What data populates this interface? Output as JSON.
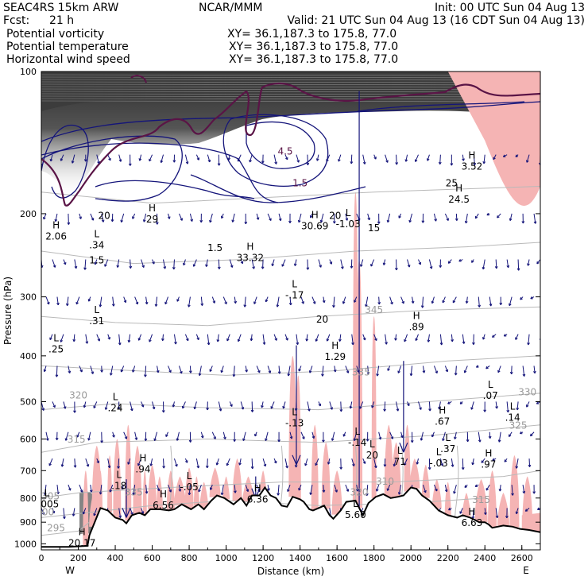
{
  "header": {
    "model": "SEAC4RS 15km ARW",
    "center": "NCAR/MMM",
    "init": "Init: 00 UTC Sun 04 Aug 13",
    "fcst_label": "Fcst:",
    "fcst_value": "21 h",
    "valid": "Valid: 21 UTC Sun 04 Aug 13 (16 CDT Sun 04 Aug 13)"
  },
  "fields": [
    {
      "name": "Potential vorticity",
      "xy": "XY=  36.1,187.3 to 175.8, 77.0",
      "color": "#000000"
    },
    {
      "name": "Potential temperature",
      "xy": "XY=  36.1,187.3 to 175.8, 77.0",
      "color": "#b4b4b4"
    },
    {
      "name": "Horizontal wind speed",
      "xy": "XY=  36.1,187.3 to 175.8, 77.0",
      "color": "#000080"
    }
  ],
  "colors": {
    "pv_fill_dark": "#3c3c3c",
    "pink": "#f5b4b4",
    "navy": "#14147a",
    "maroon": "#5a1446",
    "gray_contour": "#b9b9b9",
    "terrain": "#000000"
  },
  "chart_data": {
    "type": "cross-section",
    "xlabel": "Distance (km)",
    "ylabel": "Pressure (hPa)",
    "x_ticks": [
      0,
      200,
      400,
      600,
      800,
      1000,
      1200,
      1400,
      1600,
      1800,
      2000,
      2200,
      2400,
      2600
    ],
    "y_ticks": [
      100,
      200,
      300,
      400,
      500,
      600,
      700,
      800,
      900,
      1000
    ],
    "xlim": [
      0,
      2700
    ],
    "ylim": [
      1030,
      100
    ],
    "y_scale": "log",
    "left_end": "W",
    "right_end": "E",
    "terrain_surface": [
      [
        0,
        1015
      ],
      [
        150,
        1015
      ],
      [
        250,
        1010
      ],
      [
        260,
        960
      ],
      [
        320,
        840
      ],
      [
        360,
        850
      ],
      [
        400,
        880
      ],
      [
        440,
        890
      ],
      [
        460,
        905
      ],
      [
        490,
        870
      ],
      [
        530,
        860
      ],
      [
        560,
        870
      ],
      [
        590,
        845
      ],
      [
        640,
        845
      ],
      [
        690,
        850
      ],
      [
        720,
        845
      ],
      [
        760,
        825
      ],
      [
        810,
        845
      ],
      [
        850,
        825
      ],
      [
        880,
        845
      ],
      [
        920,
        810
      ],
      [
        950,
        790
      ],
      [
        990,
        800
      ],
      [
        1040,
        825
      ],
      [
        1080,
        800
      ],
      [
        1110,
        830
      ],
      [
        1140,
        790
      ],
      [
        1180,
        790
      ],
      [
        1210,
        760
      ],
      [
        1240,
        790
      ],
      [
        1270,
        800
      ],
      [
        1300,
        830
      ],
      [
        1330,
        835
      ],
      [
        1360,
        795
      ],
      [
        1400,
        805
      ],
      [
        1420,
        815
      ],
      [
        1450,
        845
      ],
      [
        1470,
        850
      ],
      [
        1500,
        840
      ],
      [
        1530,
        830
      ],
      [
        1560,
        870
      ],
      [
        1580,
        885
      ],
      [
        1620,
        850
      ],
      [
        1650,
        815
      ],
      [
        1700,
        810
      ],
      [
        1740,
        870
      ],
      [
        1770,
        820
      ],
      [
        1810,
        795
      ],
      [
        1850,
        785
      ],
      [
        1890,
        800
      ],
      [
        1930,
        795
      ],
      [
        1960,
        790
      ],
      [
        2000,
        760
      ],
      [
        2030,
        765
      ],
      [
        2060,
        790
      ],
      [
        2100,
        810
      ],
      [
        2150,
        850
      ],
      [
        2200,
        870
      ],
      [
        2250,
        880
      ],
      [
        2280,
        870
      ],
      [
        2320,
        880
      ],
      [
        2370,
        900
      ],
      [
        2400,
        900
      ],
      [
        2420,
        910
      ],
      [
        2440,
        925
      ],
      [
        2470,
        920
      ],
      [
        2500,
        915
      ],
      [
        2550,
        920
      ],
      [
        2590,
        930
      ],
      [
        2640,
        935
      ],
      [
        2700,
        945
      ]
    ],
    "theta_contour_labels": [
      {
        "text": "345",
        "x": 1800,
        "p": 325
      },
      {
        "text": "335",
        "x": 1730,
        "p": 440
      },
      {
        "text": "330",
        "x": 2630,
        "p": 485
      },
      {
        "text": "320",
        "x": 200,
        "p": 492
      },
      {
        "text": "325",
        "x": 2580,
        "p": 570
      },
      {
        "text": "315",
        "x": 190,
        "p": 610
      },
      {
        "text": "305",
        "x": 50,
        "p": 805
      },
      {
        "text": "300",
        "x": 20,
        "p": 870
      },
      {
        "text": "310",
        "x": 1860,
        "p": 750
      },
      {
        "text": "320",
        "x": 1720,
        "p": 790
      },
      {
        "text": "315",
        "x": 2380,
        "p": 820
      },
      {
        "text": "335",
        "x": 500,
        "p": 790
      },
      {
        "text": "295",
        "x": 80,
        "p": 940
      }
    ],
    "wind_contour_labels": [
      {
        "text": "20",
        "x": 340,
        "p": 205
      },
      {
        "text": "25",
        "x": 2220,
        "p": 175
      },
      {
        "text": "20",
        "x": 1590,
        "p": 205
      },
      {
        "text": "20",
        "x": 1520,
        "p": 340
      },
      {
        "text": "15",
        "x": 1800,
        "p": 218
      },
      {
        "text": "1.5",
        "x": 300,
        "p": 255
      },
      {
        "text": "1.5",
        "x": 940,
        "p": 240
      }
    ],
    "pv_contour_labels": [
      {
        "text": "1.5",
        "x": 1400,
        "p": 175
      },
      {
        "text": "4.5",
        "x": 1320,
        "p": 150
      }
    ],
    "extrema": [
      {
        "type": "H",
        "value": "3.52",
        "x": 2330,
        "p": 160
      },
      {
        "type": "H",
        "value": "24.5",
        "x": 2260,
        "p": 188
      },
      {
        "type": "H",
        "value": "29",
        "x": 600,
        "p": 207
      },
      {
        "type": "H",
        "value": "30.69",
        "x": 1480,
        "p": 214
      },
      {
        "type": "L",
        "value": "-1.03",
        "x": 1660,
        "p": 212
      },
      {
        "type": "H",
        "value": "33.32",
        "x": 1130,
        "p": 250
      },
      {
        "type": "L",
        "value": "-.17",
        "x": 1370,
        "p": 300
      },
      {
        "type": "H",
        "value": "2.06",
        "x": 80,
        "p": 225
      },
      {
        "type": "L",
        "value": ".34",
        "x": 300,
        "p": 235
      },
      {
        "type": "L",
        "value": ".31",
        "x": 300,
        "p": 340
      },
      {
        "type": "L",
        "value": ".25",
        "x": 80,
        "p": 390
      },
      {
        "type": "H",
        "value": ".89",
        "x": 2030,
        "p": 350
      },
      {
        "type": "H",
        "value": "1.29",
        "x": 1590,
        "p": 405
      },
      {
        "type": "L",
        "value": ".24",
        "x": 400,
        "p": 520
      },
      {
        "type": "L",
        "value": ".07",
        "x": 2430,
        "p": 490
      },
      {
        "type": "L",
        "value": ".14",
        "x": 2550,
        "p": 545
      },
      {
        "type": "L",
        "value": "-.13",
        "x": 1370,
        "p": 560
      },
      {
        "type": "H",
        "value": ".67",
        "x": 2170,
        "p": 555
      },
      {
        "type": "L",
        "value": "-.14",
        "x": 1710,
        "p": 615
      },
      {
        "type": "L",
        "value": ".37",
        "x": 2200,
        "p": 635
      },
      {
        "type": "L",
        "value": "20",
        "x": 1790,
        "p": 655
      },
      {
        "type": "L",
        "value": "-.03",
        "x": 2150,
        "p": 680
      },
      {
        "type": "H",
        "value": ".97",
        "x": 2420,
        "p": 685
      },
      {
        "type": "H",
        "value": ".94",
        "x": 550,
        "p": 700
      },
      {
        "type": "L",
        "value": ".18",
        "x": 420,
        "p": 760
      },
      {
        "type": "L",
        "value": "-.05",
        "x": 800,
        "p": 765
      },
      {
        "type": "H",
        "value": "6.36",
        "x": 1170,
        "p": 812
      },
      {
        "type": "H",
        "value": "6.56",
        "x": 660,
        "p": 835
      },
      {
        "type": "L",
        "value": "2005",
        "x": 30,
        "p": 830
      },
      {
        "type": "H",
        "value": "6.63",
        "x": 2330,
        "p": 910
      },
      {
        "type": "L",
        "value": "5.60",
        "x": 1700,
        "p": 875
      },
      {
        "type": "H",
        "value": "20.17",
        "x": 220,
        "p": 1005
      },
      {
        "type": "L",
        "value": "71",
        "x": 1940,
        "p": 675
      }
    ]
  }
}
